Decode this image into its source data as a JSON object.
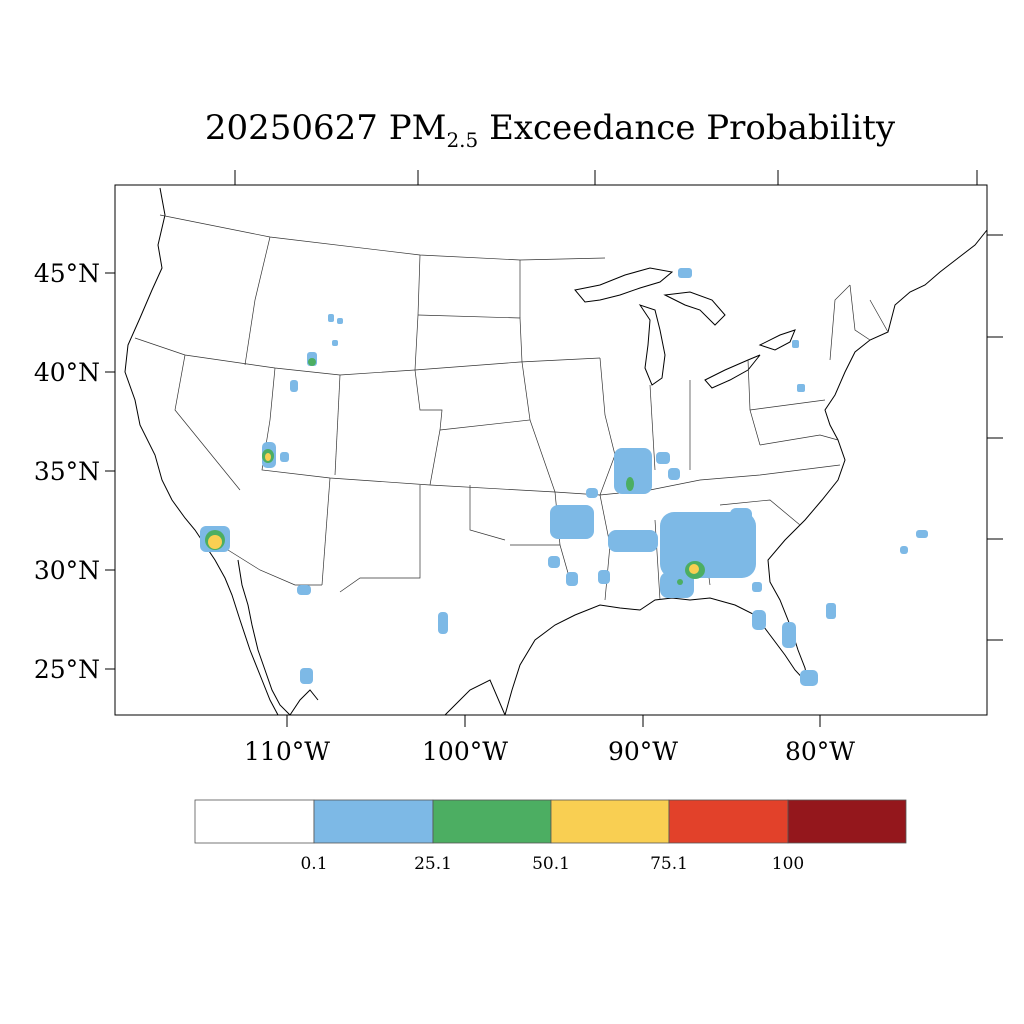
{
  "title": {
    "date": "20250627",
    "pollutant": "PM",
    "subscript": "2.5",
    "suffix": "Exceedance Probability"
  },
  "axes": {
    "lat_labels": [
      "45°N",
      "40°N",
      "35°N",
      "30°N",
      "25°N"
    ],
    "lon_labels": [
      "110°W",
      "100°W",
      "90°W",
      "80°W"
    ]
  },
  "legend": {
    "colors": [
      "#ffffff",
      "#7db9e6",
      "#4cae62",
      "#f9cf52",
      "#e2412a",
      "#94171c"
    ],
    "labels": [
      "0.1",
      "25.1",
      "50.1",
      "75.1",
      "100"
    ]
  }
}
